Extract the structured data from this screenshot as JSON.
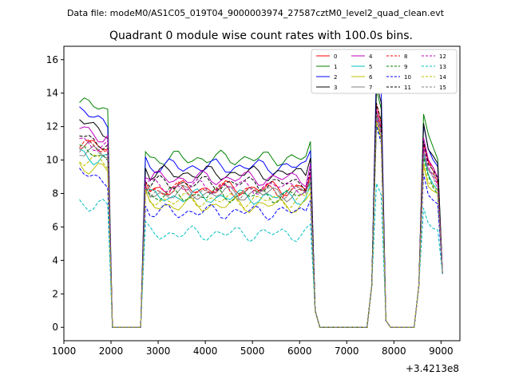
{
  "header": {
    "data_file_label": "Data file: modeM0/AS1C05_019T04_9000003974_27587cztM0_level2_quad_clean.evt"
  },
  "chart_data": {
    "type": "line",
    "title": "Quadrant 0 module wise count rates with 100.0s bins.",
    "xlabel": "",
    "ylabel": "",
    "x_offset_label": "+3.4213e8",
    "xlim": [
      1000,
      9400
    ],
    "ylim": [
      -0.8,
      16.8
    ],
    "x_ticks": [
      1000,
      2000,
      3000,
      4000,
      5000,
      6000,
      7000,
      8000,
      9000
    ],
    "y_ticks": [
      0,
      2,
      4,
      6,
      8,
      10,
      12,
      14,
      16
    ],
    "legend_position": "top-right",
    "bin_width_s": 100,
    "segments": [
      {
        "x_start": 1330,
        "x_end": 1930
      },
      {
        "x_start": 2030,
        "x_end": 2630
      },
      {
        "x_start": 2730,
        "x_end": 6230
      },
      {
        "x_start": 6330,
        "x_end": 7530
      },
      {
        "x_start": 7630,
        "x_end": 7730
      },
      {
        "x_start": 7830,
        "x_end": 7930
      },
      {
        "x_start": 8030,
        "x_end": 8430
      },
      {
        "x_start": 8530,
        "x_end": 9030
      }
    ],
    "series": [
      {
        "name": "0",
        "color": "#ff0000",
        "dash": false,
        "level": 8.3,
        "peak": 13.3,
        "end": 10.2
      },
      {
        "name": "1",
        "color": "#008000",
        "dash": false,
        "level": 10.1,
        "peak": 14.2,
        "end": 11.8
      },
      {
        "name": "2",
        "color": "#0000ff",
        "dash": false,
        "level": 9.6,
        "peak": 15.6,
        "end": 11.2
      },
      {
        "name": "3",
        "color": "#000000",
        "dash": false,
        "level": 9.2,
        "peak": 14.6,
        "end": 11.3
      },
      {
        "name": "4",
        "color": "#bf00bf",
        "dash": false,
        "level": 8.9,
        "peak": 13.0,
        "end": 10.5
      },
      {
        "name": "5",
        "color": "#00bfbf",
        "dash": false,
        "level": 7.8,
        "peak": 12.8,
        "end": 9.6
      },
      {
        "name": "6",
        "color": "#bfbf00",
        "dash": false,
        "level": 7.3,
        "peak": 12.3,
        "end": 9.0
      },
      {
        "name": "7",
        "color": "#808080",
        "dash": false,
        "level": 8.0,
        "peak": 12.6,
        "end": 9.8
      },
      {
        "name": "8",
        "color": "#ff0000",
        "dash": true,
        "level": 8.2,
        "peak": 12.9,
        "end": 10.1
      },
      {
        "name": "9",
        "color": "#008000",
        "dash": true,
        "level": 7.9,
        "peak": 12.2,
        "end": 9.4
      },
      {
        "name": "10",
        "color": "#0000ff",
        "dash": true,
        "level": 6.9,
        "peak": 12.0,
        "end": 8.5
      },
      {
        "name": "11",
        "color": "#000000",
        "dash": true,
        "level": 8.6,
        "peak": 13.4,
        "end": 10.3
      },
      {
        "name": "12",
        "color": "#bf00bf",
        "dash": true,
        "level": 8.4,
        "peak": 12.5,
        "end": 10.0
      },
      {
        "name": "13",
        "color": "#00bfbf",
        "dash": true,
        "level": 5.6,
        "peak": 8.6,
        "end": 6.6
      },
      {
        "name": "14",
        "color": "#bfbf00",
        "dash": true,
        "level": 7.6,
        "peak": 12.3,
        "end": 9.1
      },
      {
        "name": "15",
        "color": "#808080",
        "dash": true,
        "level": 8.1,
        "peak": 12.7,
        "end": 9.6
      }
    ]
  }
}
